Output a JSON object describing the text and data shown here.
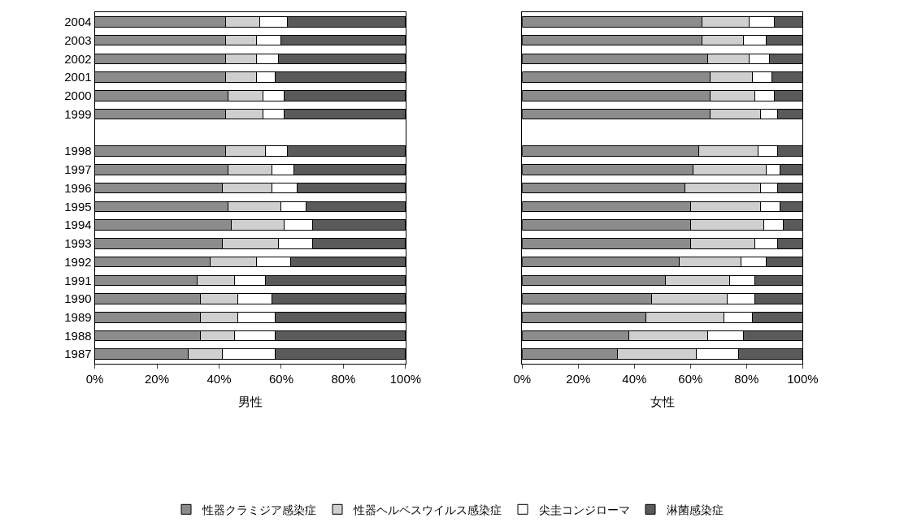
{
  "chart_data": [
    {
      "type": "bar",
      "orientation": "horizontal",
      "stacked": true,
      "xlabel": "男性",
      "legend": "bottom",
      "categories": [
        "2004",
        "2003",
        "2002",
        "2001",
        "2000",
        "1999",
        null,
        "1998",
        "1997",
        "1996",
        "1995",
        "1994",
        "1993",
        "1992",
        "1991",
        "1990",
        "1989",
        "1988",
        "1987"
      ],
      "xlim": [
        0,
        100
      ],
      "xticks": [
        {
          "value": 0,
          "label": "0%"
        },
        {
          "value": 20,
          "label": "20%"
        },
        {
          "value": 40,
          "label": "40%"
        },
        {
          "value": 60,
          "label": "60%"
        },
        {
          "value": 80,
          "label": "80%"
        },
        {
          "value": 100,
          "label": "100%"
        }
      ],
      "series": [
        {
          "name": "性器クラミジア感染症",
          "color": "#8c8c8c",
          "values": [
            42,
            42,
            42,
            42,
            43,
            42,
            null,
            42,
            43,
            41,
            43,
            44,
            41,
            37,
            33,
            34,
            34,
            34,
            30
          ]
        },
        {
          "name": "性器ヘルペスウイルス感染症",
          "color": "#cfcfcf",
          "values": [
            11,
            10,
            10,
            10,
            11,
            12,
            null,
            13,
            14,
            16,
            17,
            17,
            18,
            15,
            12,
            12,
            12,
            11,
            11
          ]
        },
        {
          "name": "尖圭コンジローマ",
          "color": "#ffffff",
          "values": [
            9,
            8,
            7,
            6,
            7,
            7,
            null,
            7,
            7,
            8,
            8,
            9,
            11,
            11,
            10,
            11,
            12,
            13,
            17
          ]
        },
        {
          "name": "淋菌感染症",
          "color": "#5a5a5a",
          "values": [
            38,
            40,
            41,
            42,
            39,
            39,
            null,
            38,
            36,
            35,
            32,
            30,
            30,
            37,
            45,
            43,
            42,
            42,
            42
          ]
        }
      ]
    },
    {
      "type": "bar",
      "orientation": "horizontal",
      "stacked": true,
      "xlabel": "女性",
      "legend": false,
      "tick_labels": "x",
      "categories": [
        "2004",
        "2003",
        "2002",
        "2001",
        "2000",
        "1999",
        null,
        "1998",
        "1997",
        "1996",
        "1995",
        "1994",
        "1993",
        "1992",
        "1991",
        "1990",
        "1989",
        "1988",
        "1987"
      ],
      "xlim": [
        0,
        100
      ],
      "xticks": [
        {
          "value": 0,
          "label": "0%"
        },
        {
          "value": 20,
          "label": "20%"
        },
        {
          "value": 40,
          "label": "40%"
        },
        {
          "value": 60,
          "label": "60%"
        },
        {
          "value": 80,
          "label": "80%"
        },
        {
          "value": 100,
          "label": "100%"
        }
      ],
      "series": [
        {
          "color": "#8c8c8c",
          "values": [
            64,
            64,
            66,
            67,
            67,
            67,
            null,
            63,
            61,
            58,
            60,
            60,
            60,
            56,
            51,
            46,
            44,
            38,
            34
          ]
        },
        {
          "color": "#cfcfcf",
          "values": [
            17,
            15,
            15,
            15,
            16,
            18,
            null,
            21,
            26,
            27,
            25,
            26,
            23,
            22,
            23,
            27,
            28,
            28,
            28
          ]
        },
        {
          "color": "#ffffff",
          "values": [
            9,
            8,
            7,
            7,
            7,
            6,
            null,
            7,
            5,
            6,
            7,
            7,
            8,
            9,
            9,
            10,
            10,
            13,
            15
          ]
        },
        {
          "color": "#5a5a5a",
          "values": [
            10,
            13,
            12,
            11,
            10,
            9,
            null,
            9,
            8,
            9,
            8,
            7,
            9,
            13,
            17,
            17,
            18,
            21,
            23
          ]
        }
      ]
    }
  ]
}
